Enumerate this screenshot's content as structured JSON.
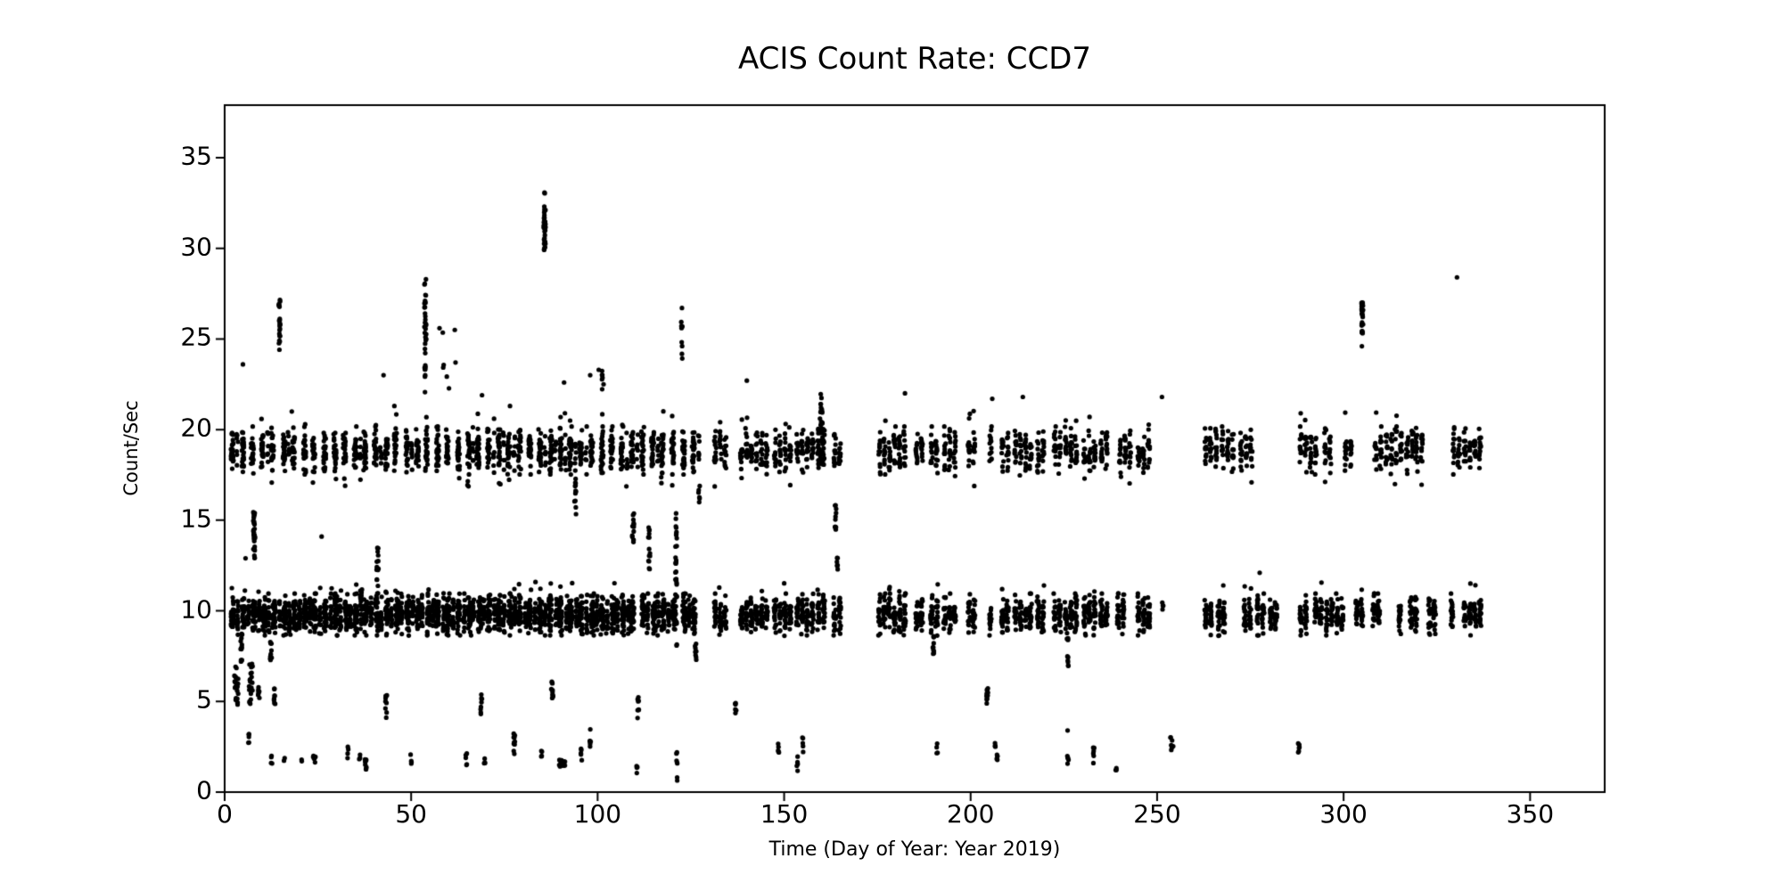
{
  "chart_data": {
    "type": "scatter",
    "title": "ACIS Count Rate: CCD7",
    "xlabel": "Time (Day of Year: Year 2019)",
    "ylabel": "Count/Sec",
    "xlim": [
      0,
      370
    ],
    "ylim": [
      0,
      37.9
    ],
    "xticks": [
      0,
      50,
      100,
      150,
      200,
      250,
      300,
      350
    ],
    "yticks": [
      0,
      5,
      10,
      15,
      20,
      25,
      30,
      35
    ],
    "grid": false,
    "legend": null,
    "marker": {
      "color": "#000000",
      "radius_px": 2.6
    },
    "axis_color": "#000000",
    "background_color": "#ffffff",
    "seed": 42,
    "bands": [
      {
        "name": "upper band ~19 counts/sec",
        "level": 18.85,
        "sd": 0.55,
        "dense": {
          "start": 2.0,
          "end": 126.5,
          "spacing": 2.75,
          "col_width": 0.7,
          "points_per_col": 26,
          "mid_col_chance": 0.45,
          "mid_points": 7
        },
        "gaps": [
          [
            302.0,
            307.5
          ]
        ],
        "win_col": {
          "spacing": 1.35,
          "width": 0.55,
          "points": 13
        },
        "outliers": {
          "up_frac": 0.02,
          "up_min": 0.6,
          "up_max": 2.2,
          "down_frac": 0.015,
          "down_min": 0.8,
          "down_max": 2.0
        },
        "windows": [
          [
            131,
            135
          ],
          [
            138,
            145.5
          ],
          [
            147,
            152
          ],
          [
            153,
            158
          ],
          [
            158.7,
            161.3
          ],
          [
            163,
            165
          ],
          [
            175,
            183.5
          ],
          [
            185,
            187
          ],
          [
            189,
            191
          ],
          [
            192.5,
            196.5
          ],
          [
            199,
            202
          ],
          [
            204.8,
            206.5
          ],
          [
            208,
            210.5
          ],
          [
            211.5,
            217
          ],
          [
            217.5,
            220
          ],
          [
            222,
            224
          ],
          [
            225,
            229
          ],
          [
            230,
            233.5
          ],
          [
            234.5,
            236.5
          ],
          [
            239.5,
            243
          ],
          [
            244.5,
            248.5
          ],
          [
            262.5,
            266
          ],
          [
            267,
            270.5
          ],
          [
            272,
            276
          ],
          [
            288,
            293.5
          ],
          [
            294.5,
            297
          ],
          [
            300,
            302
          ],
          [
            308,
            310
          ],
          [
            311,
            313
          ],
          [
            313.5,
            316
          ],
          [
            316.5,
            318.5
          ],
          [
            319,
            321.5
          ],
          [
            329,
            331.5
          ],
          [
            332,
            337
          ]
        ]
      },
      {
        "name": "lower band ~10 counts/sec",
        "level": 9.8,
        "sd": 0.48,
        "dense": {
          "start": 2.2,
          "end": 126.5,
          "spacing": 1.375,
          "col_width": 0.85,
          "points_per_col": 34,
          "alt_points": 16,
          "alt_width": 0.5
        },
        "gaps": [
          [
            35.8,
            37.2
          ],
          [
            109.8,
            111.5
          ],
          [
            121.4,
            122.9
          ]
        ],
        "win_col": {
          "spacing": 1.35,
          "width": 0.6,
          "points": 19
        },
        "outliers": {
          "up_frac": 0.02,
          "up_min": 0.6,
          "up_max": 1.8,
          "down_frac": 0.01,
          "down_min": 0.6,
          "down_max": 1.2
        },
        "windows": [
          [
            131,
            135
          ],
          [
            138,
            145.5
          ],
          [
            147,
            152
          ],
          [
            153,
            158
          ],
          [
            158.7,
            161.5
          ],
          [
            163,
            165
          ],
          [
            175,
            183.5
          ],
          [
            185,
            187
          ],
          [
            189,
            191
          ],
          [
            192.5,
            196.5
          ],
          [
            199,
            202
          ],
          [
            204.8,
            206.5
          ],
          [
            208,
            210.5
          ],
          [
            211.5,
            217
          ],
          [
            217.5,
            220
          ],
          [
            222,
            224
          ],
          [
            225,
            229
          ],
          [
            230,
            233.5
          ],
          [
            234.5,
            237
          ],
          [
            239,
            242
          ],
          [
            244.5,
            248
          ],
          [
            262.5,
            264.5
          ],
          [
            266,
            268.5
          ],
          [
            273,
            275.5
          ],
          [
            276.5,
            279
          ],
          [
            280,
            282.5
          ],
          [
            288,
            291
          ],
          [
            292,
            294
          ],
          [
            295,
            300
          ],
          [
            303,
            306
          ],
          [
            307.5,
            310
          ],
          [
            314.5,
            316
          ],
          [
            317.5,
            319.5
          ],
          [
            322.5,
            324.5
          ],
          [
            328.5,
            330.2
          ],
          [
            332,
            337
          ]
        ]
      }
    ],
    "features_format": [
      "day_center",
      "day_width",
      "y_min",
      "y_max",
      "n_points"
    ],
    "features": [
      [
        7.9,
        0.5,
        13.2,
        15.5,
        26
      ],
      [
        7.9,
        0.3,
        12.6,
        13.1,
        3
      ],
      [
        14.7,
        0.4,
        24.3,
        27.2,
        22
      ],
      [
        36.6,
        0.5,
        9.0,
        12.0,
        22
      ],
      [
        41.0,
        0.5,
        10.8,
        13.5,
        16
      ],
      [
        53.8,
        0.5,
        24.0,
        28.9,
        26
      ],
      [
        53.8,
        0.4,
        21.9,
        24.0,
        8
      ],
      [
        58.5,
        4.0,
        22.0,
        26.0,
        6
      ],
      [
        85.8,
        0.45,
        29.8,
        32.5,
        36
      ],
      [
        85.8,
        0.2,
        32.8,
        33.4,
        2
      ],
      [
        94.0,
        0.4,
        15.2,
        17.4,
        12
      ],
      [
        101.3,
        0.6,
        22.2,
        23.3,
        7
      ],
      [
        109.5,
        0.5,
        13.6,
        15.8,
        14
      ],
      [
        113.8,
        0.5,
        12.0,
        14.6,
        14
      ],
      [
        121.0,
        0.5,
        8.0,
        15.6,
        34
      ],
      [
        122.6,
        0.4,
        22.5,
        27.2,
        9
      ],
      [
        126.3,
        0.4,
        7.2,
        8.3,
        8
      ],
      [
        127.2,
        0.35,
        15.8,
        17.0,
        6
      ],
      [
        160.0,
        0.8,
        18.0,
        22.0,
        40
      ],
      [
        163.8,
        0.4,
        14.3,
        15.9,
        12
      ],
      [
        164.2,
        0.35,
        12.0,
        13.1,
        7
      ],
      [
        190.0,
        0.4,
        7.5,
        9.0,
        10
      ],
      [
        226.0,
        0.4,
        6.8,
        8.8,
        10
      ],
      [
        251.5,
        0.3,
        9.9,
        10.5,
        4
      ],
      [
        305.0,
        0.45,
        25.0,
        27.2,
        30
      ],
      [
        3.2,
        1.2,
        4.8,
        7.0,
        24
      ],
      [
        4.5,
        0.4,
        7.2,
        8.8,
        12
      ],
      [
        7.0,
        1.0,
        4.8,
        7.1,
        20
      ],
      [
        9.2,
        0.5,
        5.0,
        5.9,
        8
      ],
      [
        6.5,
        0.3,
        2.7,
        3.3,
        5
      ],
      [
        12.4,
        0.4,
        7.2,
        8.4,
        10
      ],
      [
        13.5,
        0.6,
        4.7,
        5.8,
        8
      ],
      [
        12.6,
        0.3,
        1.3,
        2.1,
        4
      ],
      [
        16.0,
        0.25,
        1.7,
        2.0,
        2
      ],
      [
        20.6,
        0.3,
        1.7,
        2.0,
        2
      ],
      [
        24.0,
        0.7,
        1.3,
        2.0,
        7
      ],
      [
        33.0,
        0.3,
        1.7,
        2.5,
        4
      ],
      [
        36.2,
        0.3,
        1.8,
        2.2,
        3
      ],
      [
        37.8,
        0.5,
        1.2,
        1.9,
        9
      ],
      [
        43.3,
        0.4,
        4.0,
        5.4,
        8
      ],
      [
        50.0,
        0.3,
        1.5,
        2.2,
        4
      ],
      [
        64.8,
        0.3,
        1.4,
        2.2,
        5
      ],
      [
        68.8,
        0.4,
        4.1,
        5.4,
        8
      ],
      [
        69.7,
        0.3,
        1.5,
        2.2,
        4
      ],
      [
        77.7,
        0.45,
        2.0,
        3.7,
        10
      ],
      [
        85.0,
        0.3,
        1.6,
        2.3,
        4
      ],
      [
        87.7,
        0.8,
        5.1,
        6.2,
        10
      ],
      [
        90.5,
        1.6,
        1.35,
        1.95,
        16
      ],
      [
        95.6,
        0.3,
        1.6,
        2.4,
        5
      ],
      [
        98.0,
        0.35,
        2.4,
        3.6,
        6
      ],
      [
        110.9,
        0.4,
        4.0,
        5.3,
        8
      ],
      [
        110.5,
        0.3,
        0.8,
        1.5,
        4
      ],
      [
        121.2,
        0.35,
        1.5,
        2.3,
        5
      ],
      [
        121.3,
        0.2,
        0.5,
        1.0,
        2
      ],
      [
        137.0,
        0.35,
        4.2,
        5.1,
        6
      ],
      [
        148.5,
        0.3,
        2.1,
        2.9,
        5
      ],
      [
        153.5,
        0.3,
        1.1,
        2.0,
        5
      ],
      [
        155.0,
        0.3,
        2.2,
        3.1,
        5
      ],
      [
        191.0,
        0.3,
        2.1,
        2.8,
        4
      ],
      [
        204.5,
        0.4,
        4.6,
        5.9,
        12
      ],
      [
        206.5,
        0.3,
        2.3,
        2.9,
        4
      ],
      [
        207.1,
        0.3,
        1.4,
        2.1,
        5
      ],
      [
        226.1,
        0.5,
        1.5,
        2.0,
        5
      ],
      [
        233.0,
        0.35,
        1.5,
        2.9,
        6
      ],
      [
        239.0,
        0.25,
        1.2,
        1.6,
        3
      ],
      [
        254.0,
        0.8,
        2.3,
        3.1,
        10
      ],
      [
        288.0,
        0.35,
        2.1,
        2.9,
        6
      ]
    ],
    "points_format": [
      "day",
      "count_rate"
    ],
    "points": [
      [
        4.9,
        23.6
      ],
      [
        5.6,
        12.9
      ],
      [
        18.0,
        21.0
      ],
      [
        26.0,
        14.1
      ],
      [
        32.3,
        16.9
      ],
      [
        42.6,
        23.0
      ],
      [
        45.5,
        21.3
      ],
      [
        61.7,
        25.5
      ],
      [
        61.9,
        23.7
      ],
      [
        69.0,
        21.9
      ],
      [
        76.5,
        21.3
      ],
      [
        91.0,
        22.6
      ],
      [
        98.0,
        23.0
      ],
      [
        100.3,
        23.3
      ],
      [
        140.0,
        22.7
      ],
      [
        182.4,
        22.0
      ],
      [
        205.8,
        21.7
      ],
      [
        214.0,
        21.8
      ],
      [
        226.0,
        3.4
      ],
      [
        251.3,
        21.8
      ],
      [
        277.5,
        12.1
      ],
      [
        288.5,
        20.9
      ],
      [
        304.9,
        24.6
      ],
      [
        330.4,
        28.4
      ]
    ]
  }
}
